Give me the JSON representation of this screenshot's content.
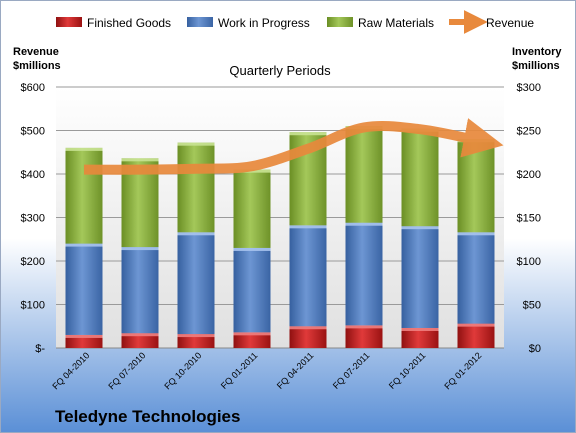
{
  "company": "Teledyne Technologies",
  "legend": {
    "finished_goods": "Finished Goods",
    "work_in_progress": "Work in Progress",
    "raw_materials": "Raw Materials",
    "revenue": "Revenue"
  },
  "colors": {
    "finished_goods": "#cc2020",
    "work_in_progress": "#4f7cbf",
    "raw_materials": "#8bb23b",
    "revenue": "#e8893c",
    "background_top": "#ffffff",
    "background_bottom": "#5a8fd6"
  },
  "chart_data": {
    "type": "bar",
    "stacked": true,
    "title": "Quarterly Periods",
    "ylabel_left": "Revenue\n$millions",
    "ylabel_right": "Inventory\n$millions",
    "categories": [
      "FQ 04-2010",
      "FQ 07-2010",
      "FQ 10-2010",
      "FQ 01-2011",
      "FQ 04-2011",
      "FQ 07-2011",
      "FQ 10-2011",
      "FQ 01-2012"
    ],
    "series": [
      {
        "name": "Finished Goods",
        "axis": "right",
        "values": [
          15,
          17,
          16,
          18,
          25,
          26,
          23,
          28
        ]
      },
      {
        "name": "Work in Progress",
        "axis": "right",
        "values": [
          105,
          99,
          117,
          97,
          116,
          118,
          117,
          105
        ]
      },
      {
        "name": "Raw Materials",
        "axis": "right",
        "values": [
          110,
          102,
          103,
          90,
          107,
          111,
          112,
          107
        ]
      },
      {
        "name": "Revenue",
        "axis": "left",
        "type": "line",
        "values": [
          410,
          410,
          412,
          418,
          458,
          507,
          503,
          478
        ]
      }
    ],
    "left_axis": {
      "min": 0,
      "max": 600,
      "ticks": [
        "$-",
        "$100",
        "$200",
        "$300",
        "$400",
        "$500",
        "$600"
      ]
    },
    "right_axis": {
      "min": 0,
      "max": 300,
      "ticks": [
        "$0",
        "$50",
        "$100",
        "$150",
        "$200",
        "$250",
        "$300"
      ]
    },
    "legend_position": "top"
  }
}
